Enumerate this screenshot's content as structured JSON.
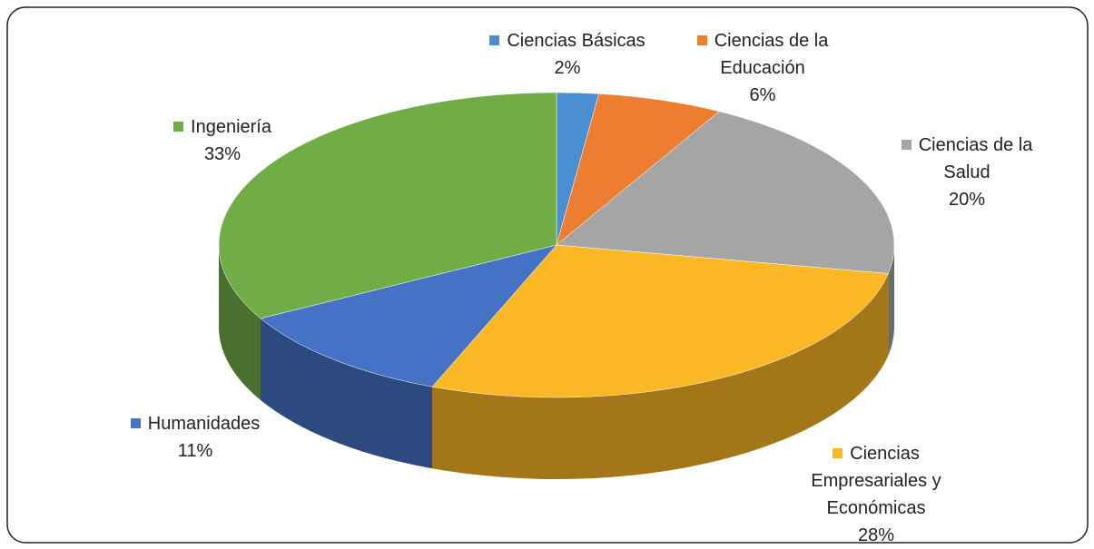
{
  "chart_data": {
    "type": "pie",
    "categories": [
      "Ciencias Básicas",
      "Ciencias de la Educación",
      "Ciencias de la Salud",
      "Ciencias Empresariales y Económicas",
      "Humanidades",
      "Ingeniería"
    ],
    "values": [
      2,
      6,
      20,
      28,
      11,
      33
    ],
    "value_labels": [
      "2%",
      "6%",
      "20%",
      "28%",
      "11%",
      "33%"
    ],
    "colors": [
      "#4a8fd1",
      "#ed7d31",
      "#a5a5a5",
      "#fbb724",
      "#4472c4",
      "#70ad47"
    ]
  }
}
